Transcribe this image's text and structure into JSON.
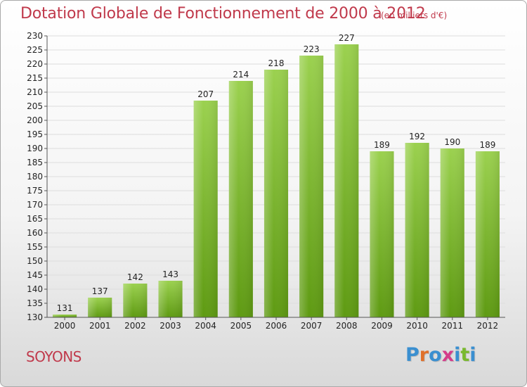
{
  "header": {
    "title": "Dotation Globale de Fonctionnement de 2000 à 2012",
    "subtitle": "(en milliers d'€)"
  },
  "footer": {
    "city": "SOYONS",
    "logo": {
      "letters": [
        "P",
        "r",
        "o",
        "x",
        "i",
        "t",
        "i"
      ],
      "colors": [
        "#3a8fd0",
        "#e0702a",
        "#3a8fd0",
        "#d43c8a",
        "#3a8fd0",
        "#7ab92e",
        "#3a8fd0"
      ]
    }
  },
  "chart_data": {
    "type": "bar",
    "categories": [
      "2000",
      "2001",
      "2002",
      "2003",
      "2004",
      "2005",
      "2006",
      "2007",
      "2008",
      "2009",
      "2010",
      "2011",
      "2012"
    ],
    "values": [
      131,
      137,
      142,
      143,
      207,
      214,
      218,
      223,
      227,
      189,
      192,
      190,
      189
    ],
    "title": "Dotation Globale de Fonctionnement de 2000 à 2012",
    "subtitle": "(en milliers d'€)",
    "ylim": [
      130,
      230
    ],
    "ytick_step": 5,
    "grid": true,
    "bar_color_top": "#9bd14f",
    "bar_color_bottom": "#5e9a12"
  }
}
